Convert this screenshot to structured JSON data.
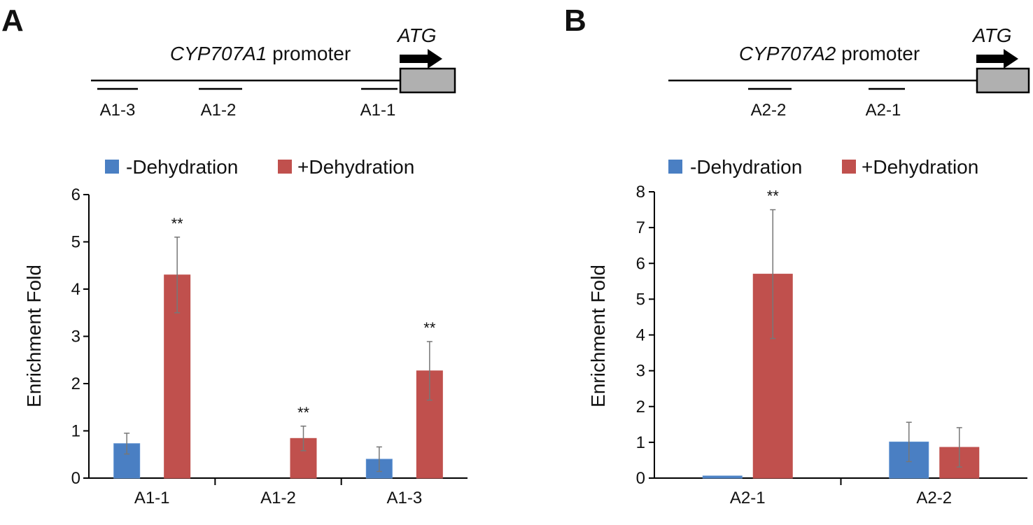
{
  "colors": {
    "minus": "#4a7fc3",
    "plus": "#c0504d",
    "minus_stroke": "#5b8fd0",
    "plus_stroke": "#c0504d",
    "axis": "#000000",
    "error": "#777777",
    "gene_box": "#b0b0b0"
  },
  "legend": {
    "minus_label": "-Dehydration",
    "plus_label": "+Dehydration"
  },
  "panels": [
    {
      "letter": "A",
      "promoter": {
        "gene_name": "CYP707A1",
        "suffix": " promoter",
        "atg": "ATG",
        "regions": [
          "A1-3",
          "A1-2",
          "A1-1"
        ]
      }
    },
    {
      "letter": "B",
      "promoter": {
        "gene_name": "CYP707A2",
        "suffix": " promoter",
        "atg": "ATG",
        "regions": [
          "A2-2",
          "A2-1"
        ]
      }
    }
  ],
  "chart_data": [
    {
      "type": "bar",
      "panel": "A",
      "categories": [
        "A1-1",
        "A1-2",
        "A1-3"
      ],
      "series": [
        {
          "name": "-Dehydration",
          "values": [
            0.73,
            0.0,
            0.4
          ],
          "errors": [
            0.22,
            0.0,
            0.26
          ]
        },
        {
          "name": "+Dehydration",
          "values": [
            4.3,
            0.84,
            2.27
          ],
          "errors": [
            0.8,
            0.26,
            0.62
          ]
        }
      ],
      "significance": [
        "**",
        "**",
        "**"
      ],
      "xlabel": "",
      "ylabel": "Enrichment Fold",
      "ylim": [
        0,
        6
      ],
      "yticks": [
        "0",
        "1",
        "2",
        "3",
        "4",
        "5",
        "6"
      ],
      "legend_position": "top"
    },
    {
      "type": "bar",
      "panel": "B",
      "categories": [
        "A2-1",
        "A2-2"
      ],
      "series": [
        {
          "name": "-Dehydration",
          "values": [
            0.06,
            1.01
          ],
          "errors": [
            0.0,
            0.55
          ]
        },
        {
          "name": "+Dehydration",
          "values": [
            5.7,
            0.86
          ],
          "errors": [
            1.8,
            0.55
          ]
        }
      ],
      "significance": [
        "**",
        ""
      ],
      "xlabel": "",
      "ylabel": "Enrichment Fold",
      "ylim": [
        0,
        8
      ],
      "yticks": [
        "0",
        "1",
        "2",
        "3",
        "4",
        "5",
        "6",
        "7",
        "8"
      ],
      "legend_position": "top"
    }
  ]
}
